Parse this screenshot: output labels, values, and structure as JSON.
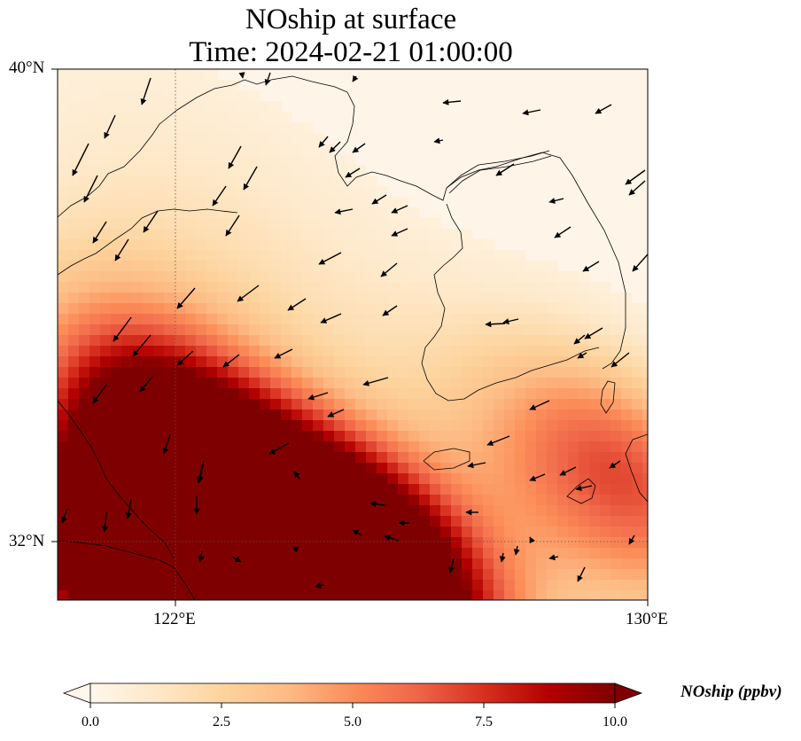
{
  "title": {
    "line1": "NOship at surface",
    "line2": "Time: 2024-02-21 01:00:00"
  },
  "map": {
    "lat_labels": [
      "40°N",
      "32°N"
    ],
    "lon_labels": [
      "122°E",
      "130°E"
    ],
    "extent": {
      "lon_min": 120,
      "lon_max": 130,
      "lat_min": 31,
      "lat_max": 40
    }
  },
  "colorbar": {
    "label": "NOship (ppbv)",
    "ticks": [
      "0.0",
      "2.5",
      "5.0",
      "7.5",
      "10.0"
    ],
    "min": 0,
    "max": 10,
    "colormap": [
      "#fff7ec",
      "#fee8c8",
      "#fdd49e",
      "#fdbb84",
      "#fc8d59",
      "#ef6548",
      "#d7301f",
      "#b30000",
      "#7f0000"
    ]
  }
}
